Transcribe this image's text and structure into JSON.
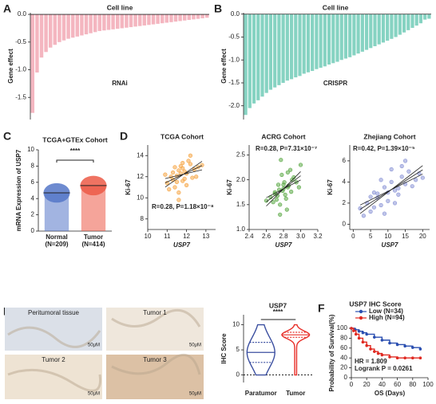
{
  "chart_data": [
    {
      "type": "bar",
      "panel": "A",
      "title": "Cell line",
      "ylabel": "Gene effect",
      "annotation": "RNAi",
      "color": "#f4b6c0",
      "values": [
        -1.78,
        -1.05,
        -0.78,
        -0.68,
        -0.6,
        -0.55,
        -0.5,
        -0.47,
        -0.44,
        -0.42,
        -0.4,
        -0.38,
        -0.36,
        -0.34,
        -0.32,
        -0.3,
        -0.29,
        -0.28,
        -0.27,
        -0.26,
        -0.25,
        -0.24,
        -0.23,
        -0.22,
        -0.21,
        -0.2,
        -0.19,
        -0.18,
        -0.17,
        -0.16,
        -0.15,
        -0.14,
        -0.13,
        -0.12,
        -0.11,
        -0.1,
        -0.09,
        -0.08,
        -0.07,
        -0.06
      ],
      "ylim": [
        -1.9,
        0.03
      ],
      "yticks": [
        {
          "value": 0,
          "label": "0.0"
        },
        {
          "value": -0.5,
          "label": "-0.5"
        },
        {
          "value": -1,
          "label": "-1.0"
        },
        {
          "value": -1.5,
          "label": "-1.5"
        }
      ]
    },
    {
      "type": "bar",
      "panel": "B",
      "title": "Cell line",
      "ylabel": "Gene effect",
      "annotation": "CRISPR",
      "color": "#86d3c2",
      "values": [
        -2.2,
        -2.05,
        -1.95,
        -1.88,
        -1.8,
        -1.72,
        -1.65,
        -1.6,
        -1.55,
        -1.5,
        -1.45,
        -1.42,
        -1.38,
        -1.35,
        -1.3,
        -1.27,
        -1.24,
        -1.2,
        -1.17,
        -1.14,
        -1.1,
        -1.07,
        -1.04,
        -1.0,
        -0.97,
        -0.94,
        -0.9,
        -0.86,
        -0.82,
        -0.78,
        -0.74,
        -0.7,
        -0.66,
        -0.62,
        -0.58,
        -0.54,
        -0.5,
        -0.45,
        -0.4,
        -0.35,
        -0.3,
        -0.25,
        -0.2,
        -0.12,
        -0.1
      ],
      "ylim": [
        -2.3,
        0.03
      ],
      "yticks": [
        {
          "value": 0,
          "label": "0.0"
        },
        {
          "value": -0.5,
          "label": "-0.5"
        },
        {
          "value": -1,
          "label": "-1.0"
        },
        {
          "value": -1.5,
          "label": "-1.5"
        },
        {
          "value": -2,
          "label": "-2.0"
        }
      ]
    },
    {
      "type": "bar",
      "panel": "C",
      "title": "TCGA+GTEx Cohort",
      "ylabel": "mRNA Expression of USP7",
      "annotation": "****",
      "categories": [
        "Normal",
        "Tumor"
      ],
      "category_notes": [
        "(N=209)",
        "(N=414)"
      ],
      "values": [
        4.7,
        5.6
      ],
      "colors": [
        "#5577c8",
        "#ec5a47"
      ],
      "ylim": [
        0,
        10
      ],
      "yticks": [
        0,
        2,
        4,
        6,
        8,
        10
      ]
    },
    {
      "type": "scatter",
      "panel": "D",
      "title": "TCGA Cohort",
      "xlabel": "USP7",
      "ylabel": "Ki-67",
      "annotation": "R=0.28, P=1.18×10⁻⁸",
      "color": "#f5a442",
      "x": [
        11.2,
        11.5,
        11.8,
        12.0,
        11.4,
        11.6,
        12.2,
        11.9,
        11.3,
        11.7,
        12.4,
        11.1,
        11.8,
        12.1,
        11.5,
        12.6,
        11.0,
        11.9,
        12.3,
        11.6,
        10.9,
        12.8,
        11.4,
        12.0,
        11.7,
        12.2,
        11.3,
        12.5,
        11.8,
        11.6
      ],
      "y": [
        12.0,
        11.5,
        12.8,
        12.3,
        11.0,
        12.6,
        13.2,
        11.8,
        12.4,
        13.0,
        12.7,
        10.8,
        11.6,
        13.5,
        12.1,
        12.9,
        11.4,
        12.5,
        11.9,
        10.5,
        12.2,
        13.1,
        12.9,
        11.2,
        12.3,
        14.0,
        11.7,
        12.0,
        13.3,
        9.8
      ],
      "xlim": [
        10,
        13.5
      ],
      "xticks": [
        10,
        11,
        12,
        13
      ],
      "ylim": [
        7,
        15
      ],
      "yticks": [
        8,
        10,
        12,
        14
      ]
    },
    {
      "type": "scatter",
      "title": "ACRG Cohort",
      "xlabel": "USP7",
      "ylabel": "Ki-67",
      "annotation": "R=0.28, P=7.31×10⁻⁷",
      "color": "#5aa844",
      "x": [
        2.7,
        2.75,
        2.8,
        2.85,
        2.78,
        2.72,
        2.9,
        2.82,
        2.68,
        2.95,
        2.76,
        2.88,
        2.8,
        2.65,
        3.0,
        2.74,
        2.84,
        2.79,
        2.92,
        2.7,
        2.86,
        2.77,
        2.83,
        2.6,
        2.98,
        2.81,
        2.73,
        2.89,
        2.76,
        2.85
      ],
      "y": [
        1.75,
        1.8,
        1.9,
        1.85,
        2.1,
        1.6,
        2.0,
        1.7,
        1.55,
        1.95,
        1.5,
        2.2,
        1.82,
        1.65,
        2.3,
        1.9,
        1.4,
        1.78,
        2.05,
        1.72,
        1.88,
        2.4,
        1.62,
        1.58,
        1.85,
        1.95,
        1.68,
        1.76,
        1.3,
        2.15
      ],
      "xlim": [
        2.4,
        3.2
      ],
      "xticks": [
        2.4,
        2.6,
        2.8,
        {
          "value": 3,
          "label": "3.0"
        },
        3.2
      ],
      "ylim": [
        1.0,
        2.7
      ],
      "yticks": [
        {
          "value": 1,
          "label": "1.0"
        },
        1.5,
        {
          "value": 2,
          "label": "2.0"
        },
        2.5
      ]
    },
    {
      "type": "scatter",
      "title": "Zhejiang Cohort",
      "xlabel": "USP7",
      "ylabel": "Ki-67",
      "annotation": "R=0.42, P=1.39×10⁻⁵",
      "color": "#8a94d6",
      "x": [
        2,
        4,
        5,
        6,
        7,
        8,
        9,
        10,
        11,
        12,
        13,
        14,
        15,
        16,
        18,
        3,
        6,
        8,
        10,
        12,
        14,
        17,
        19,
        5,
        9,
        11,
        13,
        7,
        15,
        20
      ],
      "y": [
        1.5,
        2.0,
        1.2,
        3.0,
        2.5,
        1.8,
        3.5,
        2.2,
        4.0,
        3.2,
        2.8,
        4.5,
        3.8,
        5.0,
        4.2,
        0.8,
        1.6,
        4.2,
        3.0,
        2.0,
        5.5,
        3.6,
        4.8,
        2.6,
        1.0,
        5.2,
        3.4,
        2.9,
        6.0,
        4.4
      ],
      "xlim": [
        -1,
        22
      ],
      "xticks": [
        0,
        5,
        10,
        15,
        20
      ],
      "ylim": [
        -0.5,
        7.5
      ],
      "yticks": [
        0,
        2,
        4,
        6
      ]
    },
    {
      "type": "violin",
      "title": "USP7",
      "ylabel": "IHC Score",
      "annotation": "****",
      "categories": [
        "Paratumor",
        "Tumor"
      ],
      "colors": [
        "#3b4fa0",
        "#e8302a"
      ],
      "median": [
        4.5,
        8
      ],
      "q1": [
        2.5,
        7.5
      ],
      "q3": [
        6.5,
        8.5
      ],
      "min": [
        0,
        0
      ],
      "max": [
        10,
        10
      ],
      "ylim": [
        -1.5,
        12
      ],
      "yticks": [
        0,
        5,
        10
      ]
    },
    {
      "type": "line",
      "panel": "F",
      "title": "USP7 IHC Score",
      "xlabel": "OS (Days)",
      "ylabel": "Probability of Survival(%)",
      "annotations": [
        "HR = 1.809",
        "Logrank P = 0.0261"
      ],
      "series": [
        {
          "name": "Low (N=34)",
          "color": "#2b4fb0",
          "x": [
            0,
            5,
            10,
            15,
            20,
            30,
            40,
            50,
            60,
            70,
            80,
            90
          ],
          "values": [
            100,
            97,
            94,
            91,
            88,
            82,
            76,
            70,
            67,
            64,
            61,
            58
          ]
        },
        {
          "name": "High (N=94)",
          "color": "#e02a22",
          "x": [
            0,
            3,
            6,
            10,
            15,
            20,
            25,
            30,
            35,
            40,
            50,
            60,
            70,
            80,
            90
          ],
          "values": [
            100,
            95,
            88,
            80,
            72,
            65,
            58,
            53,
            49,
            46,
            42,
            40,
            40,
            40,
            40
          ]
        }
      ],
      "xlim": [
        0,
        100
      ],
      "xticks": [
        0,
        20,
        40,
        60,
        80,
        100
      ],
      "ylim": [
        0,
        100
      ],
      "yticks": [
        0,
        20,
        40,
        60,
        80,
        100
      ]
    }
  ],
  "images": {
    "panel": "E",
    "tiles": [
      "Peritumoral tissue",
      "Tumor 1",
      "Tumor 2",
      "Tumor 3"
    ],
    "scale_bar": "50μM"
  }
}
